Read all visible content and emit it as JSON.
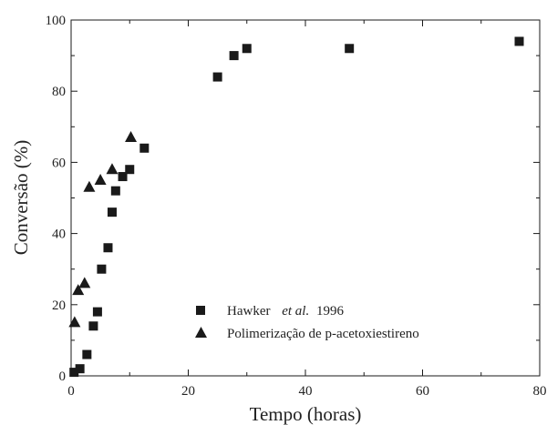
{
  "chart_data": {
    "type": "scatter",
    "xlabel": "Tempo (horas)",
    "ylabel": "Conversão (%)",
    "xlim": [
      0,
      80
    ],
    "ylim": [
      0,
      100
    ],
    "xticks": [
      0,
      20,
      40,
      60,
      80
    ],
    "yticks": [
      0,
      20,
      40,
      60,
      80,
      100
    ],
    "grid": false,
    "legend": {
      "position": "bottom-center",
      "entries": [
        {
          "marker": "square",
          "parts": [
            "Hawker",
            "et al.",
            "1996"
          ]
        },
        {
          "marker": "triangle",
          "parts": [
            "Polimerização de p-acetoxiestireno"
          ]
        }
      ]
    },
    "series": [
      {
        "marker": "square",
        "color": "#1a1a1a",
        "x": [
          0.5,
          1.5,
          2.7,
          3.8,
          4.5,
          5.2,
          6.3,
          7.0,
          7.6,
          8.8,
          10.0,
          12.5,
          25.0,
          27.8,
          30.0,
          47.5,
          76.5
        ],
        "y": [
          1,
          2,
          6,
          14,
          18,
          30,
          36,
          46,
          52,
          56,
          58,
          64,
          84,
          90,
          92,
          92,
          94
        ]
      },
      {
        "marker": "triangle",
        "color": "#1a1a1a",
        "x": [
          0.6,
          1.2,
          2.3,
          3.1,
          5.0,
          7.0,
          10.2
        ],
        "y": [
          15,
          24,
          26,
          53,
          55,
          58,
          67
        ]
      }
    ]
  }
}
